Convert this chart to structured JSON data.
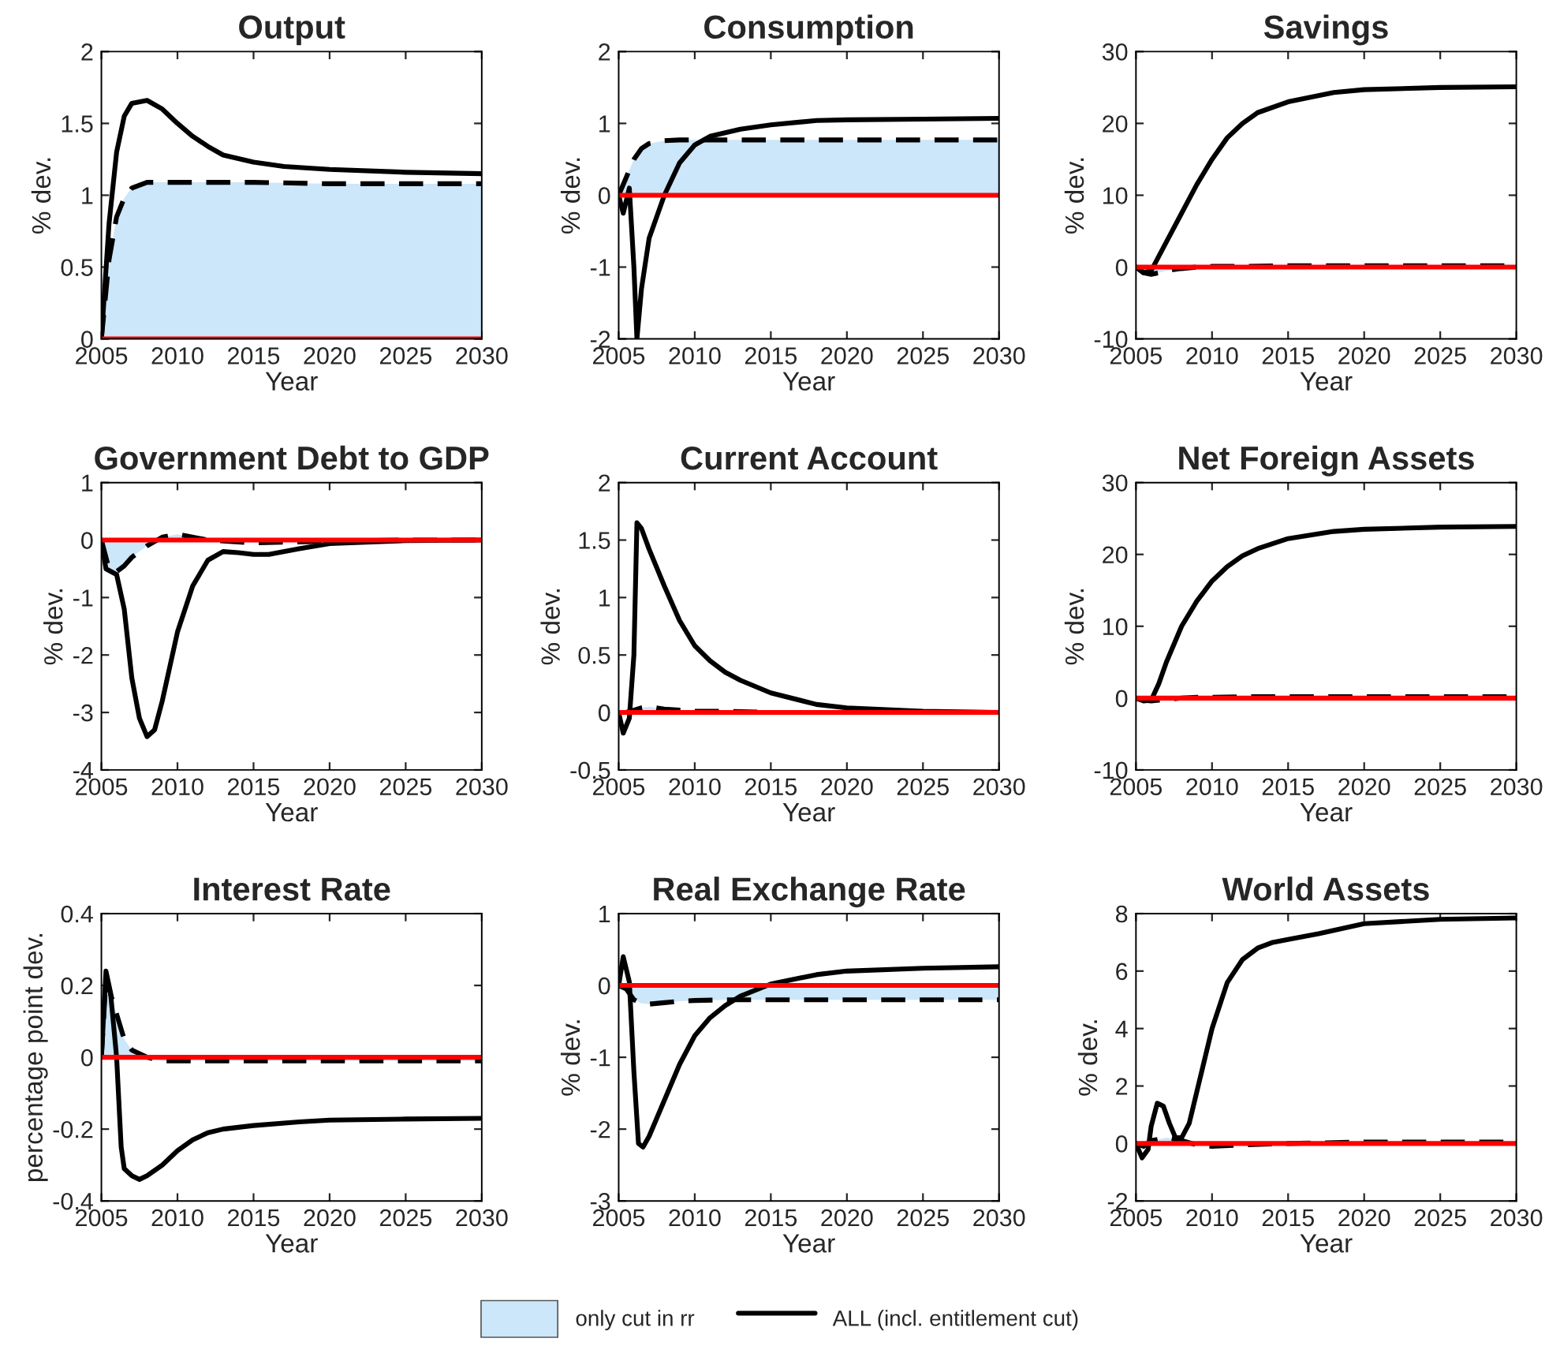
{
  "chart_data": [
    {
      "type": "line",
      "title": "Output",
      "xlabel": "Year",
      "ylabel": "% dev.",
      "x": [
        2005,
        2005.5,
        2006,
        2006.5,
        2007,
        2008,
        2009,
        2010,
        2012,
        2015,
        2020,
        2025,
        2030
      ],
      "xlim": [
        2005,
        2030
      ],
      "xticks": [
        2005,
        2010,
        2015,
        2020,
        2025,
        2030
      ],
      "ylim": [
        0,
        2
      ],
      "yticks": [
        0,
        0.5,
        1,
        1.5,
        2
      ],
      "series": [
        {
          "type": "area",
          "color": "#cce6fa",
          "line_style": "dashed",
          "values": [
            0,
            0.55,
            0.85,
            0.98,
            1.05,
            1.09,
            1.09,
            1.09,
            1.09,
            1.09,
            1.08,
            1.08,
            1.08
          ]
        },
        {
          "color": "#000000",
          "x": [
            2005,
            2005.5,
            2006,
            2006.5,
            2007,
            2008,
            2009,
            2010,
            2011,
            2012,
            2013,
            2015,
            2017,
            2020,
            2025,
            2030
          ],
          "values": [
            0,
            0.8,
            1.3,
            1.55,
            1.64,
            1.66,
            1.6,
            1.5,
            1.41,
            1.34,
            1.28,
            1.23,
            1.2,
            1.18,
            1.16,
            1.15
          ]
        },
        {
          "color": "#ff0000",
          "values": [
            0,
            0,
            0,
            0,
            0,
            0,
            0,
            0,
            0,
            0,
            0,
            0,
            0
          ]
        }
      ]
    },
    {
      "type": "line",
      "title": "Consumption",
      "xlabel": "Year",
      "ylabel": "% dev.",
      "x": [
        2005,
        2005.5,
        2006,
        2006.5,
        2007,
        2008,
        2009,
        2010,
        2012,
        2015,
        2020,
        2025,
        2030
      ],
      "xlim": [
        2005,
        2030
      ],
      "xticks": [
        2005,
        2010,
        2015,
        2020,
        2025,
        2030
      ],
      "ylim": [
        -2,
        2
      ],
      "yticks": [
        -2,
        -1,
        0,
        1,
        2
      ],
      "series": [
        {
          "type": "area",
          "color": "#cce6fa",
          "line_style": "dashed",
          "values": [
            0,
            0.25,
            0.5,
            0.65,
            0.72,
            0.76,
            0.77,
            0.77,
            0.77,
            0.77,
            0.77,
            0.77,
            0.77
          ]
        },
        {
          "color": "#000000",
          "x": [
            2005,
            2005.3,
            2005.7,
            2006,
            2006.2,
            2006.5,
            2007,
            2008,
            2009,
            2010,
            2011,
            2013,
            2015,
            2018,
            2020,
            2025,
            2030
          ],
          "values": [
            0,
            -0.25,
            0.1,
            -1.0,
            -2.0,
            -1.3,
            -0.6,
            0,
            0.45,
            0.7,
            0.82,
            0.92,
            0.98,
            1.04,
            1.05,
            1.06,
            1.07
          ]
        },
        {
          "color": "#ff0000",
          "values": [
            0,
            0,
            0,
            0,
            0,
            0,
            0,
            0,
            0,
            0,
            0,
            0,
            0
          ]
        }
      ]
    },
    {
      "type": "line",
      "title": "Savings",
      "xlabel": "Year",
      "ylabel": "% dev.",
      "x": [
        2005,
        2005.5,
        2006,
        2006.5,
        2007,
        2008,
        2009,
        2010,
        2012,
        2015,
        2020,
        2025,
        2030
      ],
      "xlim": [
        2005,
        2030
      ],
      "xticks": [
        2005,
        2010,
        2015,
        2020,
        2025,
        2030
      ],
      "ylim": [
        -10,
        30
      ],
      "yticks": [
        -10,
        0,
        10,
        20,
        30
      ],
      "series": [
        {
          "type": "area",
          "color": "#cce6fa",
          "line_style": "dashed",
          "values": [
            0,
            -0.8,
            -1,
            -0.8,
            -0.5,
            -0.2,
            0,
            0.1,
            0.1,
            0.2,
            0.2,
            0.2,
            0.2
          ]
        },
        {
          "color": "#000000",
          "x": [
            2005,
            2005.5,
            2006,
            2006.5,
            2007,
            2008,
            2009,
            2010,
            2011,
            2012,
            2013,
            2015,
            2018,
            2020,
            2025,
            2030
          ],
          "values": [
            0,
            -0.8,
            -0.5,
            1.5,
            3.5,
            7.5,
            11.5,
            15,
            18,
            20,
            21.5,
            23,
            24.3,
            24.7,
            25,
            25.1
          ]
        },
        {
          "color": "#ff0000",
          "values": [
            0,
            0,
            0,
            0,
            0,
            0,
            0,
            0,
            0,
            0,
            0,
            0,
            0
          ]
        }
      ]
    },
    {
      "type": "line",
      "title": "Government Debt to GDP",
      "xlabel": "Year",
      "ylabel": "% dev.",
      "x": [
        2005,
        2005.5,
        2006,
        2006.5,
        2007,
        2008,
        2009,
        2010,
        2012,
        2015,
        2020,
        2025,
        2030
      ],
      "xlim": [
        2005,
        2030
      ],
      "xticks": [
        2005,
        2010,
        2015,
        2020,
        2025,
        2030
      ],
      "ylim": [
        -4,
        1
      ],
      "yticks": [
        -4,
        -3,
        -2,
        -1,
        0,
        1
      ],
      "series": [
        {
          "type": "area",
          "color": "#cce6fa",
          "line_style": "dashed",
          "values": [
            0,
            -0.5,
            -0.55,
            -0.45,
            -0.3,
            -0.1,
            0.05,
            0.1,
            0,
            -0.05,
            -0.02,
            0,
            0
          ]
        },
        {
          "color": "#000000",
          "x": [
            2005,
            2005.3,
            2006,
            2006.5,
            2007,
            2007.5,
            2008,
            2008.5,
            2009,
            2010,
            2011,
            2012,
            2013,
            2014,
            2015,
            2016,
            2018,
            2020,
            2025,
            2030
          ],
          "values": [
            0,
            -0.5,
            -0.6,
            -1.2,
            -2.4,
            -3.1,
            -3.42,
            -3.3,
            -2.8,
            -1.6,
            -0.8,
            -0.35,
            -0.2,
            -0.22,
            -0.25,
            -0.25,
            -0.15,
            -0.06,
            -0.01,
            0
          ]
        },
        {
          "color": "#ff0000",
          "values": [
            0,
            0,
            0,
            0,
            0,
            0,
            0,
            0,
            0,
            0,
            0,
            0,
            0
          ]
        }
      ]
    },
    {
      "type": "line",
      "title": "Current Account",
      "xlabel": "Year",
      "ylabel": "% dev.",
      "x": [
        2005,
        2005.5,
        2006,
        2006.5,
        2007,
        2008,
        2009,
        2010,
        2012,
        2015,
        2020,
        2025,
        2030
      ],
      "xlim": [
        2005,
        2030
      ],
      "xticks": [
        2005,
        2010,
        2015,
        2020,
        2025,
        2030
      ],
      "ylim": [
        -0.5,
        2
      ],
      "yticks": [
        -0.5,
        0,
        0.5,
        1,
        1.5,
        2
      ],
      "series": [
        {
          "type": "area",
          "color": "#cce6fa",
          "line_style": "dashed",
          "values": [
            0,
            0,
            0.02,
            0.04,
            0.05,
            0.03,
            0.02,
            0.01,
            0.01,
            0,
            0,
            0,
            0
          ]
        },
        {
          "color": "#000000",
          "x": [
            2005,
            2005.3,
            2005.7,
            2006,
            2006.2,
            2006.5,
            2007,
            2008,
            2009,
            2010,
            2011,
            2012,
            2013,
            2015,
            2018,
            2020,
            2025,
            2030
          ],
          "values": [
            0,
            -0.18,
            -0.05,
            0.5,
            1.65,
            1.6,
            1.42,
            1.1,
            0.8,
            0.58,
            0.45,
            0.35,
            0.28,
            0.17,
            0.07,
            0.04,
            0.01,
            0
          ]
        },
        {
          "color": "#ff0000",
          "values": [
            0,
            0,
            0,
            0,
            0,
            0,
            0,
            0,
            0,
            0,
            0,
            0,
            0
          ]
        }
      ]
    },
    {
      "type": "line",
      "title": "Net Foreign Assets",
      "xlabel": "Year",
      "ylabel": "% dev.",
      "x": [
        2005,
        2005.5,
        2006,
        2006.5,
        2007,
        2008,
        2009,
        2010,
        2012,
        2015,
        2020,
        2025,
        2030
      ],
      "xlim": [
        2005,
        2030
      ],
      "xticks": [
        2005,
        2010,
        2015,
        2020,
        2025,
        2030
      ],
      "ylim": [
        -10,
        30
      ],
      "yticks": [
        -10,
        0,
        10,
        20,
        30
      ],
      "series": [
        {
          "type": "area",
          "color": "#cce6fa",
          "line_style": "dashed",
          "values": [
            0,
            -0.3,
            -0.4,
            -0.3,
            -0.2,
            0,
            0.1,
            0.1,
            0.2,
            0.2,
            0.2,
            0.2,
            0.2
          ]
        },
        {
          "color": "#000000",
          "x": [
            2005,
            2005.5,
            2006,
            2006.5,
            2007,
            2008,
            2009,
            2010,
            2011,
            2012,
            2013,
            2015,
            2018,
            2020,
            2025,
            2030
          ],
          "values": [
            0,
            -0.4,
            -0.3,
            2,
            5,
            10,
            13.5,
            16.3,
            18.3,
            19.8,
            20.8,
            22.2,
            23.2,
            23.5,
            23.8,
            23.9
          ]
        },
        {
          "color": "#ff0000",
          "values": [
            0,
            0,
            0,
            0,
            0,
            0,
            0,
            0,
            0,
            0,
            0,
            0,
            0
          ]
        }
      ]
    },
    {
      "type": "line",
      "title": "Interest Rate",
      "xlabel": "Year",
      "ylabel": "percentage point dev.",
      "x": [
        2005,
        2005.3,
        2006,
        2006.5,
        2007,
        2008,
        2009,
        2010,
        2012,
        2015,
        2020,
        2025,
        2030
      ],
      "xlim": [
        2005,
        2030
      ],
      "xticks": [
        2005,
        2010,
        2015,
        2020,
        2025,
        2030
      ],
      "ylim": [
        -0.4,
        0.4
      ],
      "yticks": [
        -0.4,
        -0.2,
        0,
        0.2,
        0.4
      ],
      "series": [
        {
          "type": "area",
          "color": "#cce6fa",
          "line_style": "dashed",
          "values": [
            0,
            0.22,
            0.12,
            0.05,
            0.02,
            0,
            -0.01,
            -0.01,
            -0.01,
            -0.01,
            -0.01,
            -0.01,
            -0.01
          ]
        },
        {
          "color": "#000000",
          "x": [
            2005,
            2005.3,
            2005.6,
            2006,
            2006.3,
            2006.5,
            2007,
            2007.5,
            2008,
            2009,
            2010,
            2011,
            2012,
            2013,
            2015,
            2018,
            2020,
            2025,
            2030
          ],
          "values": [
            0,
            0.24,
            0.18,
            0.0,
            -0.25,
            -0.31,
            -0.33,
            -0.34,
            -0.33,
            -0.3,
            -0.26,
            -0.23,
            -0.21,
            -0.2,
            -0.19,
            -0.18,
            -0.175,
            -0.172,
            -0.17
          ]
        },
        {
          "color": "#ff0000",
          "values": [
            0,
            0,
            0,
            0,
            0,
            0,
            0,
            0,
            0,
            0,
            0,
            0,
            0
          ]
        }
      ]
    },
    {
      "type": "line",
      "title": "Real Exchange Rate",
      "xlabel": "Year",
      "ylabel": "% dev.",
      "x": [
        2005,
        2005.5,
        2006,
        2006.5,
        2007,
        2008,
        2009,
        2010,
        2012,
        2015,
        2020,
        2025,
        2030
      ],
      "xlim": [
        2005,
        2030
      ],
      "xticks": [
        2005,
        2010,
        2015,
        2020,
        2025,
        2030
      ],
      "ylim": [
        -3,
        1
      ],
      "yticks": [
        -3,
        -2,
        -1,
        0,
        1
      ],
      "series": [
        {
          "type": "area",
          "color": "#cce6fa",
          "line_style": "dashed",
          "values": [
            0,
            -0.05,
            -0.2,
            -0.25,
            -0.26,
            -0.24,
            -0.22,
            -0.21,
            -0.2,
            -0.2,
            -0.2,
            -0.2,
            -0.2
          ]
        },
        {
          "color": "#000000",
          "x": [
            2005,
            2005.3,
            2005.7,
            2006,
            2006.3,
            2006.6,
            2007,
            2008,
            2009,
            2010,
            2011,
            2012,
            2013,
            2015,
            2018,
            2020,
            2025,
            2030
          ],
          "values": [
            0,
            0.4,
            0.05,
            -1.2,
            -2.2,
            -2.25,
            -2.1,
            -1.6,
            -1.1,
            -0.7,
            -0.45,
            -0.28,
            -0.15,
            0.02,
            0.15,
            0.2,
            0.24,
            0.26
          ]
        },
        {
          "color": "#ff0000",
          "values": [
            0,
            0,
            0,
            0,
            0,
            0,
            0,
            0,
            0,
            0,
            0,
            0,
            0
          ]
        }
      ]
    },
    {
      "type": "line",
      "title": "World Assets",
      "xlabel": "Year",
      "ylabel": "% dev.",
      "x": [
        2005,
        2005.5,
        2006,
        2006.5,
        2007,
        2008,
        2009,
        2010,
        2012,
        2015,
        2020,
        2025,
        2030
      ],
      "xlim": [
        2005,
        2030
      ],
      "xticks": [
        2005,
        2010,
        2015,
        2020,
        2025,
        2030
      ],
      "ylim": [
        -2,
        8
      ],
      "yticks": [
        -2,
        0,
        2,
        4,
        6,
        8
      ],
      "legend": "bottom",
      "series": [
        {
          "type": "area",
          "name": "only cut in rr",
          "color": "#cce6fa",
          "line_style": "dashed",
          "values": [
            0,
            -0.1,
            0.1,
            0.15,
            0.2,
            0.1,
            -0.05,
            -0.1,
            -0.05,
            0,
            0.05,
            0.05,
            0.05
          ]
        },
        {
          "name": "ALL (incl. entitlement cut)",
          "color": "#000000",
          "x": [
            2005,
            2005.4,
            2005.8,
            2006,
            2006.4,
            2006.8,
            2007.2,
            2007.6,
            2008,
            2008.5,
            2009,
            2010,
            2011,
            2012,
            2013,
            2014,
            2015,
            2017,
            2020,
            2025,
            2030
          ],
          "values": [
            0,
            -0.5,
            -0.2,
            0.6,
            1.4,
            1.3,
            0.7,
            0.2,
            0.2,
            0.7,
            1.8,
            4,
            5.6,
            6.4,
            6.8,
            7,
            7.1,
            7.3,
            7.65,
            7.8,
            7.85
          ]
        },
        {
          "color": "#ff0000",
          "values": [
            0,
            0,
            0,
            0,
            0,
            0,
            0,
            0,
            0,
            0,
            0,
            0,
            0
          ]
        }
      ]
    }
  ]
}
